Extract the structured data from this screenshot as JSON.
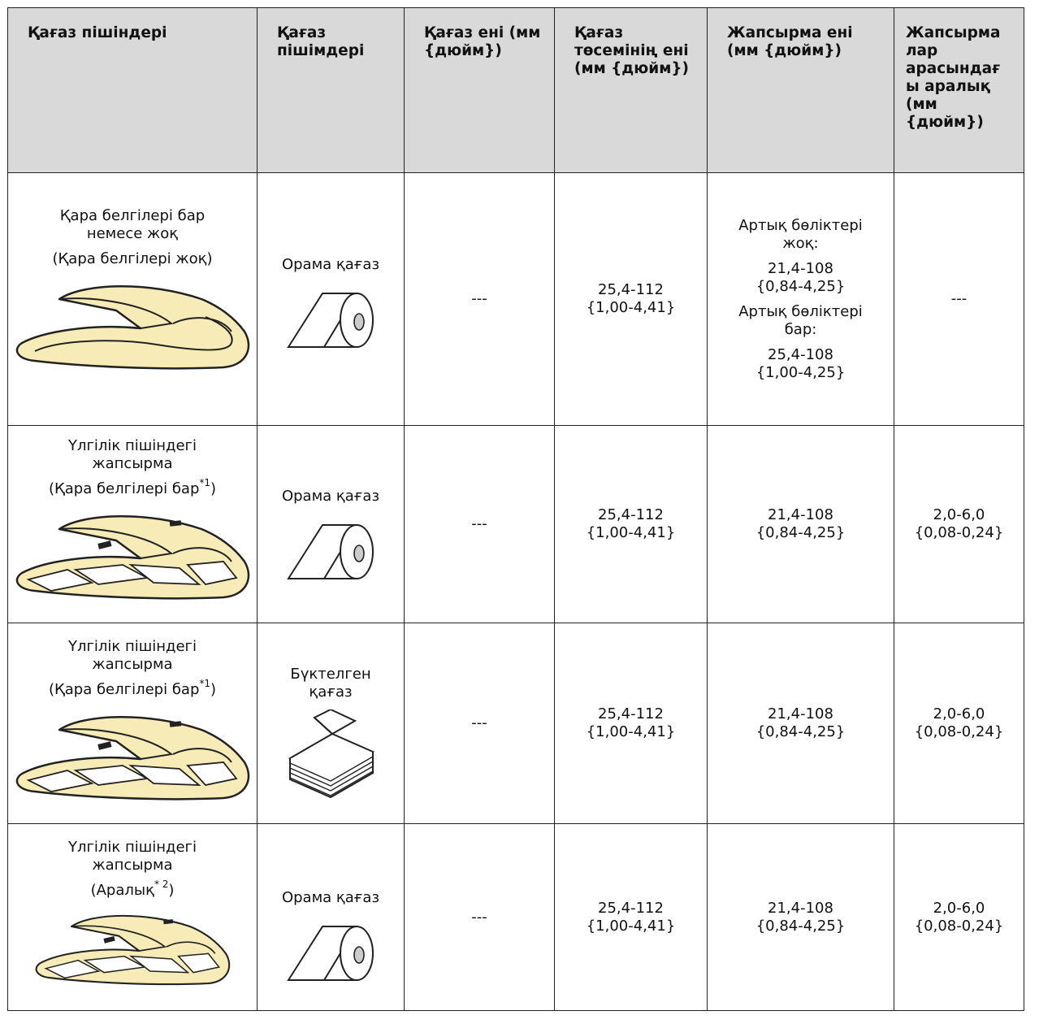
{
  "header": [
    "Қағаз пішіндері",
    "Қағаз пішімдері",
    "Қағаз ені (мм {дюйм})",
    "Қағаз төсемінің ені (мм {дюйм})",
    "Жапсырма ені (мм {дюйм})",
    "Жапсырма лар арасындағ ы аралық (мм {дюйм})"
  ],
  "rows": [
    {
      "shape_line1": "Қара белгілері бар",
      "shape_line2": "немесе жоқ",
      "shape_note": "(Қара белгілері жоқ)",
      "shape_sup": "",
      "shape_note_end": "",
      "format_line1": "Орама қағаз",
      "format_line2": "",
      "paper_width": "---",
      "liner_width_1": "25,4-112",
      "liner_width_2": "{1,00-4,41}",
      "label_width": {
        "a_head1": "Артық бөліктері",
        "a_head2": "жоқ:",
        "a_val1": "21,4-108",
        "a_val2": "{0,84-4,25}",
        "b_head1": "Артық бөліктері",
        "b_head2": "бар:",
        "b_val1": "25,4-108",
        "b_val2": "{1,00-4,25}"
      },
      "gap": "---"
    },
    {
      "shape_line1": "Үлгілік пішіндегі",
      "shape_line2": "жапсырма",
      "shape_note": "(Қара белгілері бар",
      "shape_sup": "*1",
      "shape_note_end": ")",
      "format_line1": "Орама қағаз",
      "format_line2": "",
      "paper_width": "---",
      "liner_width_1": "25,4-112",
      "liner_width_2": "{1,00-4,41}",
      "label_width_1": "21,4-108",
      "label_width_2": "{0,84-4,25}",
      "gap_1": "2,0-6,0",
      "gap_2": "{0,08-0,24}"
    },
    {
      "shape_line1": "Үлгілік пішіндегі",
      "shape_line2": "жапсырма",
      "shape_note": "(Қара белгілері бар",
      "shape_sup": "*1",
      "shape_note_end": ")",
      "format_line1": "Бүктелген",
      "format_line2": "қағаз",
      "paper_width": "---",
      "liner_width_1": "25,4-112",
      "liner_width_2": "{1,00-4,41}",
      "label_width_1": "21,4-108",
      "label_width_2": "{0,84-4,25}",
      "gap_1": "2,0-6,0",
      "gap_2": "{0,08-0,24}"
    },
    {
      "shape_line1": "Үлгілік пішіндегі",
      "shape_line2": "жапсырма",
      "shape_note": "(Аралық",
      "shape_sup": "* 2",
      "shape_note_end": ")",
      "format_line1": "Орама қағаз",
      "format_line2": "",
      "paper_width": "---",
      "liner_width_1": "25,4-112",
      "liner_width_2": "{1,00-4,41}",
      "label_width_1": "21,4-108",
      "label_width_2": "{0,84-4,25}",
      "gap_1": "2,0-6,0",
      "gap_2": "{0,08-0,24}"
    }
  ],
  "icons": {
    "continuous": "continuous-paper-icon",
    "labels": "die-cut-label-paper-icon",
    "roll": "roll-paper-icon",
    "fanfold": "fanfold-paper-icon"
  },
  "colors": {
    "header_bg": "#d9d9d9",
    "paper_fill": "#f7ecb8",
    "border": "#222222"
  }
}
